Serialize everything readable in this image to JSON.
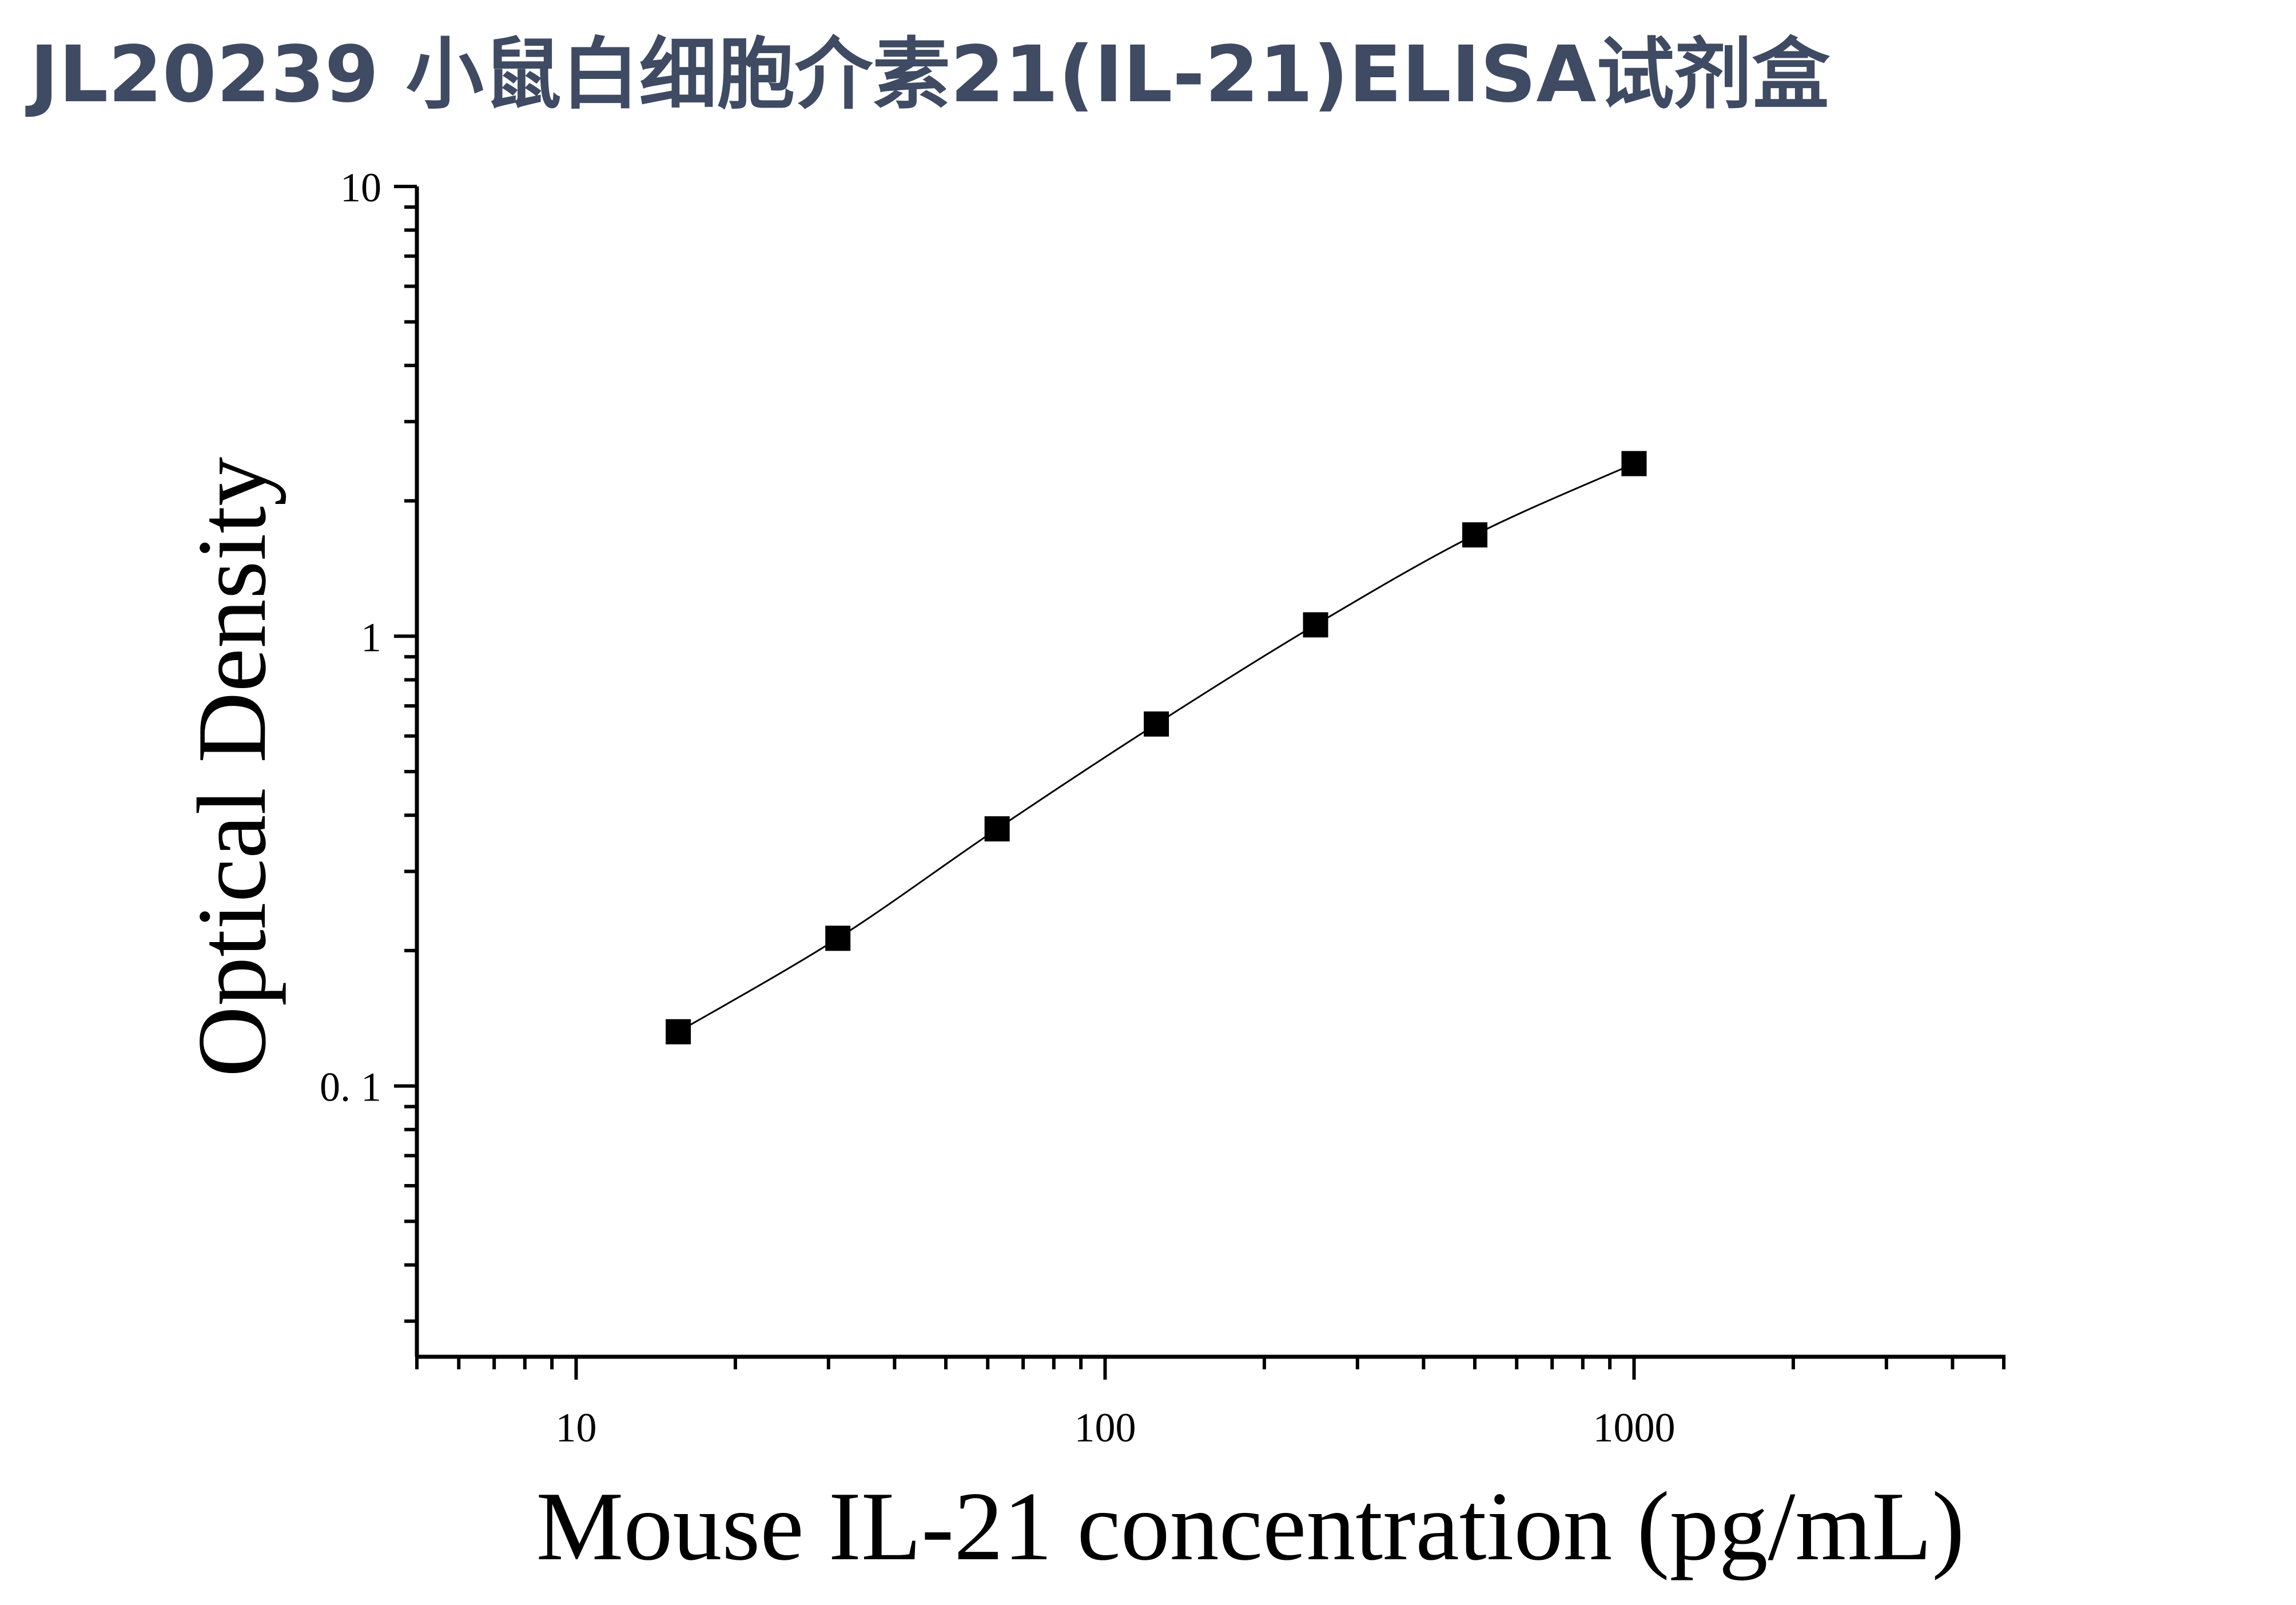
{
  "title": "JL20239 小鼠白细胞介素21(IL-21)ELISA试剂盒",
  "chart_data": {
    "type": "scatter",
    "xlabel": "Mouse IL-21 concentration (pg/mL)",
    "ylabel": "Optical Density",
    "x_scale": "log",
    "y_scale": "log",
    "xlim": [
      5,
      5000
    ],
    "ylim": [
      0.025,
      10
    ],
    "x_ticks": [
      {
        "value": 10,
        "label": "10"
      },
      {
        "value": 100,
        "label": "100"
      },
      {
        "value": 1000,
        "label": "1000"
      }
    ],
    "y_ticks": [
      {
        "value": 10,
        "label": "10"
      },
      {
        "value": 1,
        "label": "1"
      },
      {
        "value": 0.1,
        "label": "0. 1"
      }
    ],
    "x": [
      15.6,
      31.25,
      62.5,
      125,
      250,
      500,
      1000
    ],
    "y": [
      0.132,
      0.213,
      0.373,
      0.638,
      1.06,
      1.68,
      2.42
    ],
    "marker": "filled-square",
    "fit_curve": true,
    "grid": false,
    "colors": {
      "marker": "#000000",
      "curve": "#000000",
      "axis": "#000000",
      "title": "#3f4a63"
    }
  }
}
